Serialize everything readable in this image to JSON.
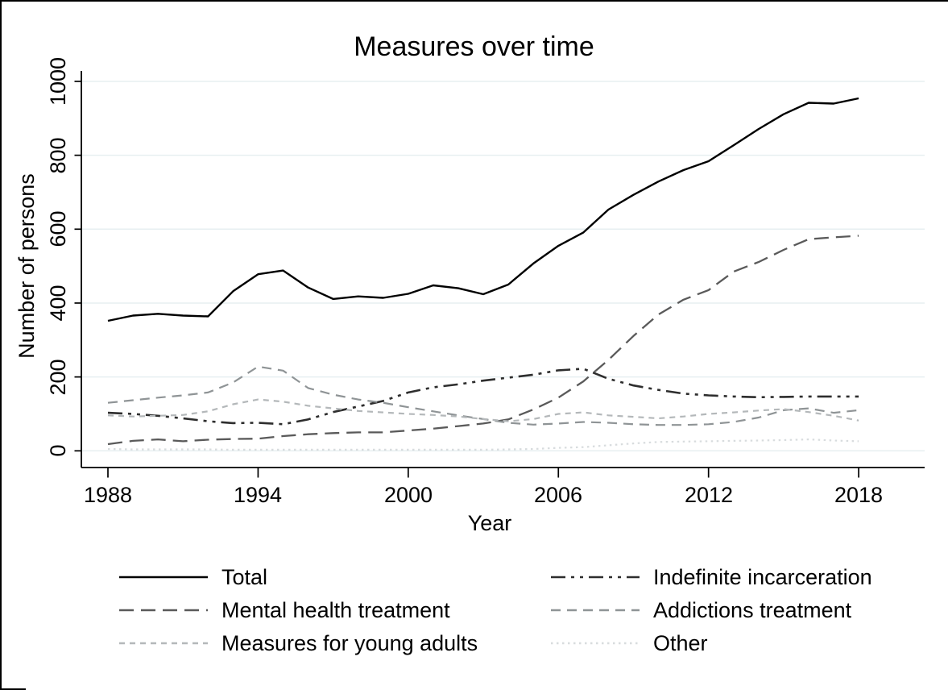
{
  "chart_data": {
    "type": "line",
    "title": "Measures over time",
    "xlabel": "Year",
    "ylabel": "Number of persons",
    "x": [
      1988,
      1989,
      1990,
      1991,
      1992,
      1993,
      1994,
      1995,
      1996,
      1997,
      1998,
      1999,
      2000,
      2001,
      2002,
      2003,
      2004,
      2005,
      2006,
      2007,
      2008,
      2009,
      2010,
      2011,
      2012,
      2013,
      2014,
      2015,
      2016,
      2017,
      2018
    ],
    "x_ticks": [
      1988,
      1994,
      2000,
      2006,
      2012,
      2018
    ],
    "y_ticks": [
      0,
      200,
      400,
      600,
      800,
      1000
    ],
    "ylim": [
      0,
      1000
    ],
    "xlim": [
      1987,
      2021
    ],
    "grid": true,
    "legend_position": "below-chart, 2 columns",
    "series": [
      {
        "name": "Total",
        "line": "solid black",
        "values": [
          352,
          366,
          371,
          366,
          364,
          432,
          478,
          488,
          442,
          411,
          418,
          414,
          425,
          448,
          440,
          424,
          450,
          507,
          555,
          591,
          653,
          693,
          729,
          760,
          784,
          827,
          871,
          911,
          942,
          940,
          954
        ]
      },
      {
        "name": "Indefinite incarceration",
        "line": "dash-dot-dot dark",
        "values": [
          103,
          100,
          95,
          88,
          80,
          75,
          76,
          72,
          85,
          105,
          120,
          135,
          158,
          172,
          180,
          190,
          198,
          206,
          218,
          222,
          195,
          177,
          165,
          155,
          150,
          147,
          145,
          146,
          147,
          147,
          147
        ]
      },
      {
        "name": "Mental health treatment",
        "line": "long-dash dark gray",
        "values": [
          18,
          27,
          31,
          26,
          30,
          32,
          33,
          40,
          45,
          48,
          50,
          50,
          55,
          60,
          67,
          74,
          85,
          112,
          144,
          188,
          246,
          311,
          369,
          409,
          435,
          485,
          511,
          544,
          573,
          578,
          582
        ]
      },
      {
        "name": "Addictions treatment",
        "line": "medium-dash gray",
        "values": [
          130,
          137,
          144,
          150,
          158,
          185,
          228,
          217,
          170,
          152,
          139,
          130,
          118,
          107,
          96,
          86,
          76,
          71,
          74,
          78,
          76,
          72,
          70,
          70,
          72,
          78,
          90,
          110,
          115,
          103,
          110
        ]
      },
      {
        "name": "Measures for young adults",
        "line": "short-dash light gray",
        "values": [
          96,
          93,
          95,
          97,
          107,
          126,
          139,
          133,
          122,
          115,
          108,
          104,
          100,
          97,
          93,
          86,
          80,
          86,
          100,
          104,
          96,
          92,
          88,
          93,
          100,
          104,
          109,
          113,
          105,
          95,
          82
        ]
      },
      {
        "name": "Other",
        "line": "dotted very light gray",
        "values": [
          5,
          4,
          4,
          4,
          4,
          3,
          3,
          3,
          3,
          3,
          3,
          3,
          3,
          3,
          3,
          3,
          4,
          5,
          8,
          10,
          15,
          20,
          24,
          25,
          26,
          27,
          28,
          29,
          31,
          28,
          26
        ]
      }
    ]
  }
}
